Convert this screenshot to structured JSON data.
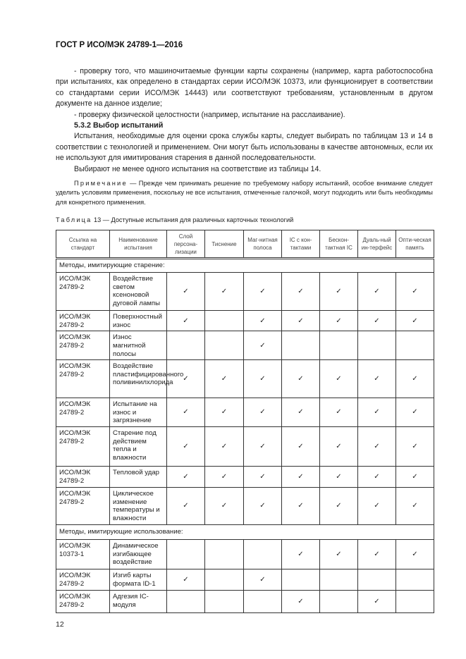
{
  "header": "ГОСТ Р ИСО/МЭК 24789-1—2016",
  "paragraphs": [
    "- проверку того, что машиночитаемые функции карты сохранены (например, карта работоспособна при испытаниях, как определено в стандартах серии ИСО/МЭК 10373, или функционирует в соответствии со стандартами серии ИСО/МЭК 14443) или соответствуют требованиям, установленным в другом документе на данное изделие;",
    "- проверку физической целостности (например, испытание на расслаивание)."
  ],
  "section_title": "5.3.2 Выбор испытаний",
  "paragraphs2": [
    "Испытания, необходимые для оценки срока службы карты, следует выбирать по таблицам 13 и 14 в соответствии с технологией и применением. Они могут быть использованы в качестве автономных, если их не используют для имитирования старения в данной последовательности.",
    "Выбирают не менее одного испытания на соответствие из таблицы 14."
  ],
  "note": {
    "label": "Примечание",
    "text": " — Прежде чем принимать решение по требуемому набору испытаний, особое внимание следует уделить условиям применения, поскольку не все испытания, отмеченные галочкой, могут подходить или быть необходимы для конкретного применения."
  },
  "table_caption": {
    "label": "Таблица",
    "text": " 13 — Доступные испытания для различных карточных технологий"
  },
  "table": {
    "columns": [
      "Ссылка на стандарт",
      "Наименование испытания",
      "Слой персона-лизации",
      "Тиснение",
      "Маг-нитная полоса",
      "IC с кон-тактами",
      "Бескон-тактная IC",
      "Дуаль-ный ин-терфейс",
      "Опти-ческая память"
    ],
    "check_mark": "✓",
    "rows": [
      {
        "section": "Методы, имитирующие старение:"
      },
      {
        "ref": "ИСО/МЭК 24789-2",
        "name": "Воздействие светом ксеноновой дуговой лампы",
        "checks": [
          1,
          1,
          1,
          1,
          1,
          1,
          1
        ]
      },
      {
        "ref": "ИСО/МЭК 24789-2",
        "name": "Поверхностный износ",
        "checks": [
          1,
          0,
          1,
          1,
          1,
          1,
          1
        ]
      },
      {
        "ref": "ИСО/МЭК 24789-2",
        "name": "Износ магнитной полосы",
        "checks": [
          0,
          0,
          1,
          0,
          0,
          0,
          0
        ]
      },
      {
        "ref": "ИСО/МЭК 24789-2",
        "name": "Воздействие пластифицированного поливинилхлорида",
        "checks": [
          1,
          1,
          1,
          1,
          1,
          1,
          1
        ]
      },
      {
        "ref": "ИСО/МЭК 24789-2",
        "name": "Испытание на износ и загрязнение",
        "checks": [
          1,
          1,
          1,
          1,
          1,
          1,
          1
        ]
      },
      {
        "ref": "ИСО/МЭК 24789-2",
        "name": "Старение под действием тепла и влажности",
        "checks": [
          1,
          1,
          1,
          1,
          1,
          1,
          1
        ]
      },
      {
        "ref": "ИСО/МЭК 24789-2",
        "name": "Тепловой удар",
        "checks": [
          1,
          1,
          1,
          1,
          1,
          1,
          1
        ]
      },
      {
        "ref": "ИСО/МЭК 24789-2",
        "name": "Циклическое изменение температуры и влажности",
        "checks": [
          1,
          1,
          1,
          1,
          1,
          1,
          1
        ]
      },
      {
        "section": "Методы, имитирующие использование:"
      },
      {
        "ref": "ИСО/МЭК 10373-1",
        "name": "Динамическое изгибающее воздействие",
        "checks": [
          0,
          0,
          0,
          1,
          1,
          1,
          1
        ]
      },
      {
        "ref": "ИСО/МЭК 24789-2",
        "name": "Изгиб карты формата ID-1",
        "checks": [
          1,
          0,
          1,
          0,
          0,
          0,
          0
        ]
      },
      {
        "ref": "ИСО/МЭК 24789-2",
        "name": "Адгезия IC-модуля",
        "checks": [
          0,
          0,
          0,
          1,
          0,
          1,
          0
        ]
      }
    ]
  },
  "page_number": "12"
}
